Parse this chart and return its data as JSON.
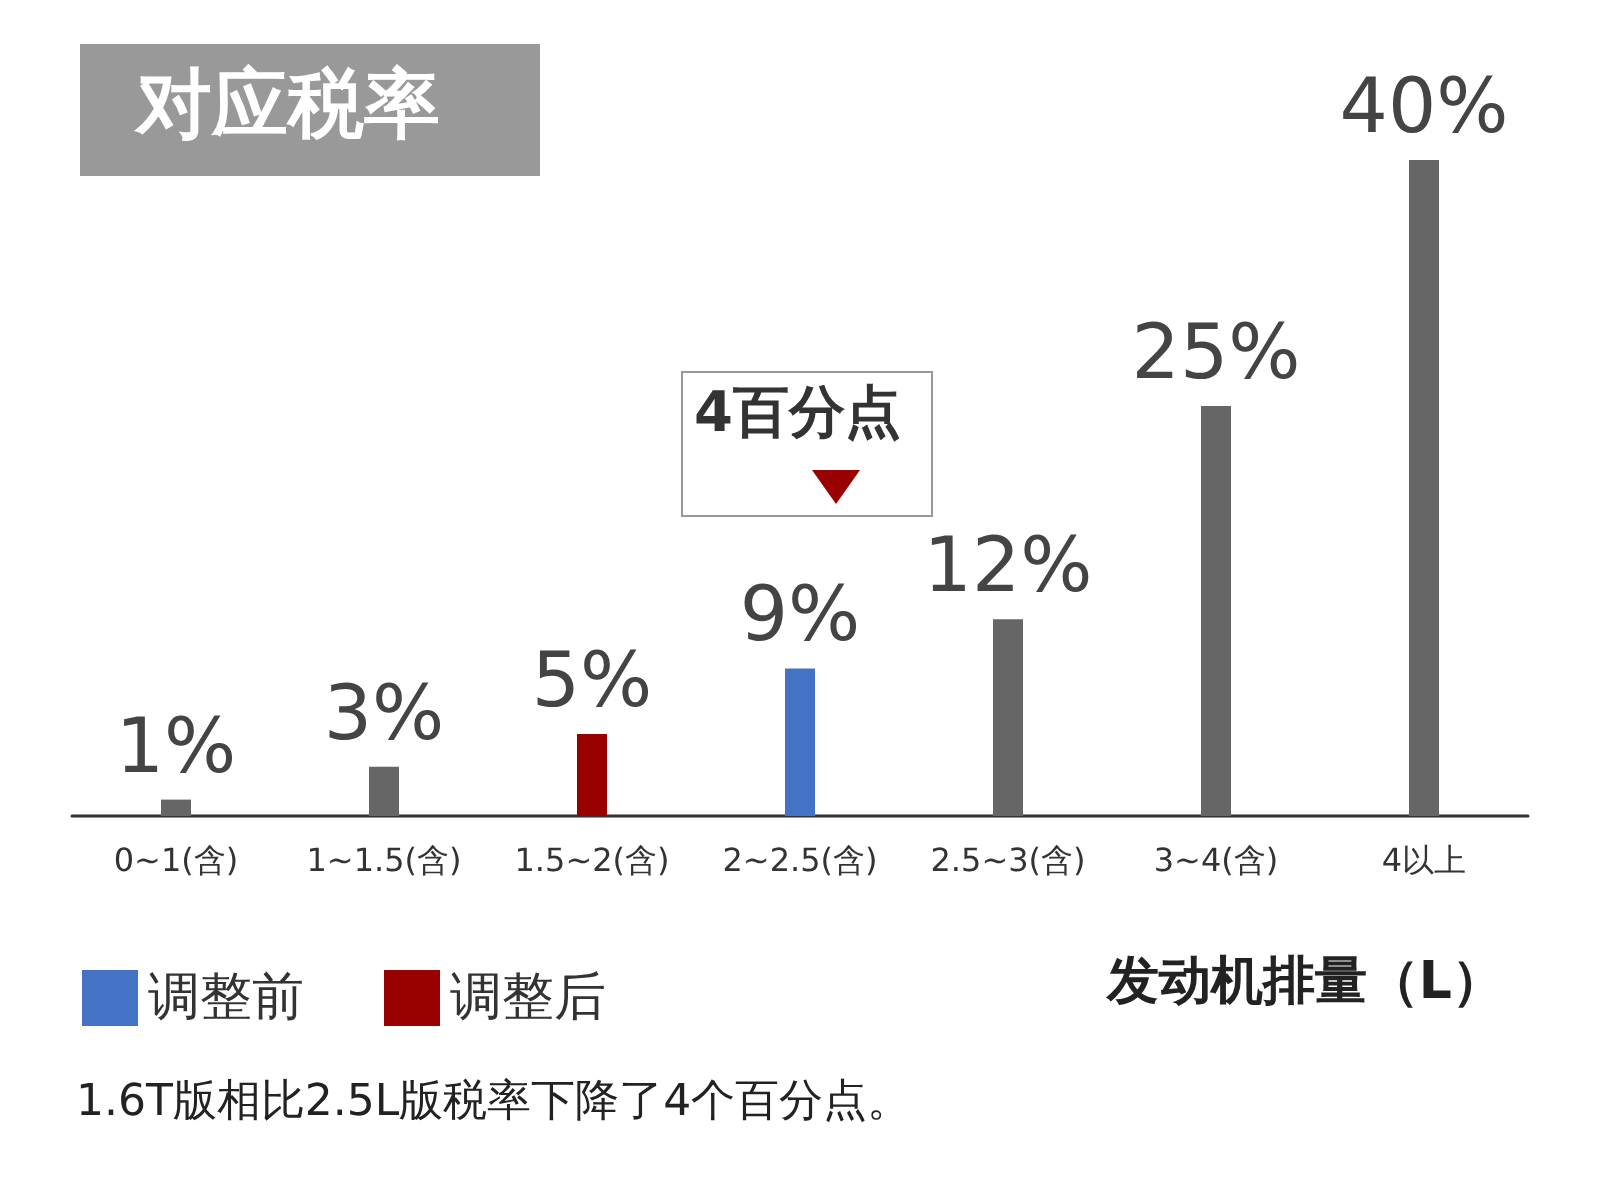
{
  "chart_data": {
    "type": "bar",
    "title": "对应税率",
    "xlabel": "发动机排量（L）",
    "categories": [
      "0~1(含)",
      "1~1.5(含)",
      "1.5~2(含)",
      "2~2.5(含)",
      "2.5~3(含)",
      "3~4(含)",
      "4以上"
    ],
    "stacked": true,
    "series": [
      {
        "color": "#666666",
        "values": [
          1,
          3,
          null,
          null,
          12,
          25,
          40
        ],
        "value_labels": [
          "1%",
          "3%",
          null,
          null,
          "12%",
          "25%",
          "40%"
        ]
      },
      {
        "name": "调整前",
        "color": "#4472c4",
        "values": [
          null,
          null,
          null,
          9,
          null,
          null,
          null
        ],
        "value_labels": [
          null,
          null,
          null,
          "9%",
          null,
          null,
          null
        ]
      },
      {
        "name": "调整后",
        "color": "#990000",
        "values": [
          null,
          null,
          5,
          null,
          null,
          null,
          null
        ],
        "value_labels": [
          null,
          null,
          "5%",
          null,
          null,
          null,
          null
        ]
      }
    ],
    "annotations": [
      "4百分点",
      "1.6T版相比2.5L版税率下降了4个百分点。"
    ],
    "legend": "bottom left"
  }
}
